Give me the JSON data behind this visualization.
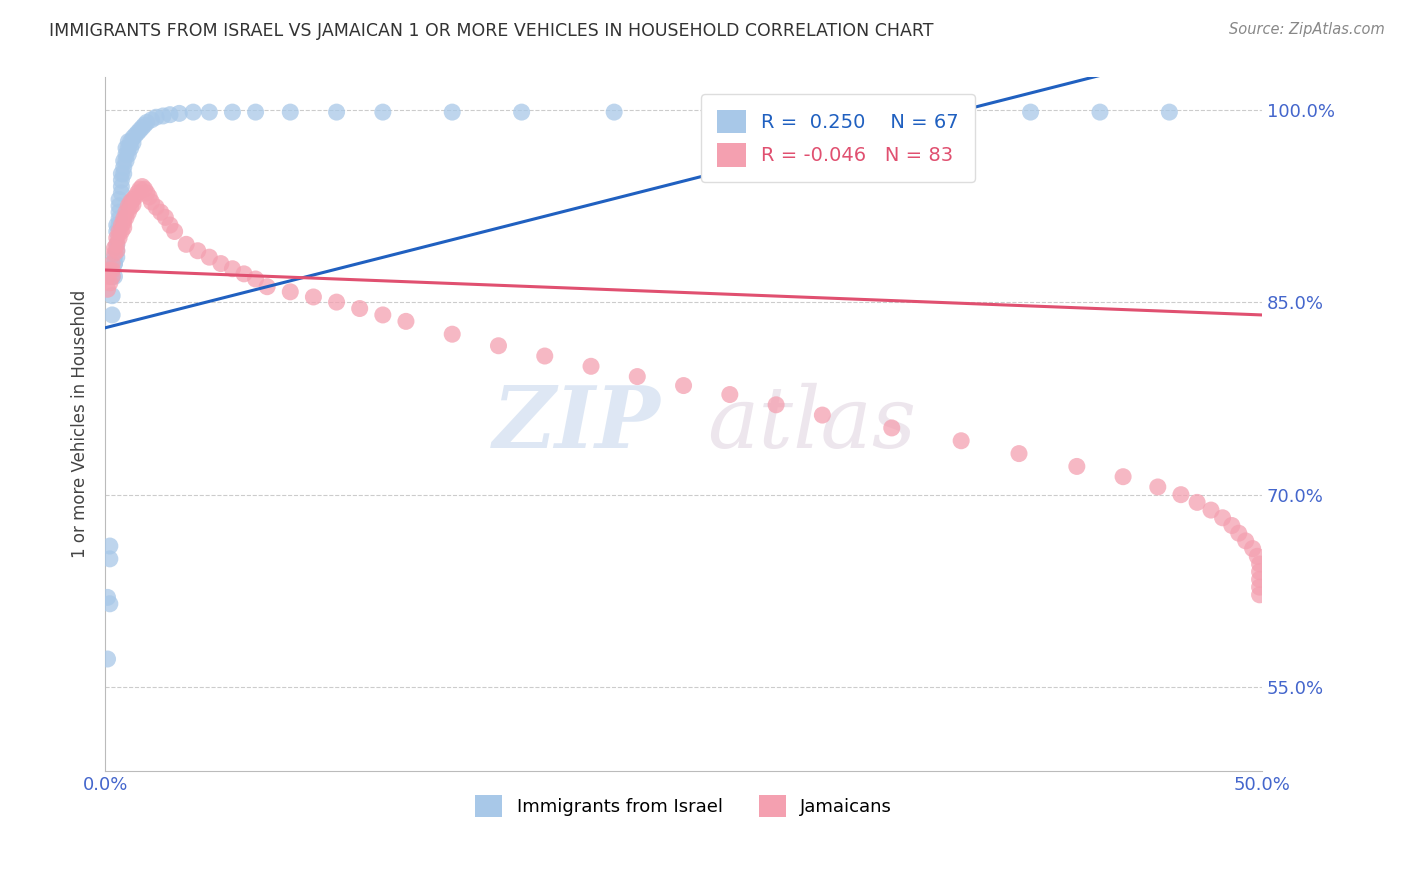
{
  "title": "IMMIGRANTS FROM ISRAEL VS JAMAICAN 1 OR MORE VEHICLES IN HOUSEHOLD CORRELATION CHART",
  "source": "Source: ZipAtlas.com",
  "ylabel": "1 or more Vehicles in Household",
  "legend_israel_r": "0.250",
  "legend_israel_n": "67",
  "legend_jamaican_r": "-0.046",
  "legend_jamaican_n": "83",
  "color_israel": "#a8c8e8",
  "color_jamaican": "#f4a0b0",
  "color_trend_israel": "#2060c0",
  "color_trend_jamaican": "#e05070",
  "xlim": [
    0.0,
    0.5
  ],
  "ylim": [
    0.485,
    1.025
  ],
  "ytick_vals": [
    1.0,
    0.85,
    0.7,
    0.55
  ],
  "ytick_labels": [
    "100.0%",
    "85.0%",
    "70.0%",
    "55.0%"
  ],
  "xtick_vals": [
    0.0,
    0.1,
    0.2,
    0.3,
    0.4,
    0.5
  ],
  "xtick_labels": [
    "0.0%",
    "",
    "",
    "",
    "",
    "50.0%"
  ],
  "israel_x": [
    0.001,
    0.001,
    0.002,
    0.002,
    0.002,
    0.003,
    0.003,
    0.003,
    0.003,
    0.004,
    0.004,
    0.004,
    0.004,
    0.005,
    0.005,
    0.005,
    0.005,
    0.005,
    0.006,
    0.006,
    0.006,
    0.006,
    0.006,
    0.007,
    0.007,
    0.007,
    0.007,
    0.008,
    0.008,
    0.008,
    0.009,
    0.009,
    0.009,
    0.01,
    0.01,
    0.01,
    0.011,
    0.011,
    0.012,
    0.012,
    0.013,
    0.014,
    0.015,
    0.016,
    0.017,
    0.018,
    0.02,
    0.022,
    0.025,
    0.028,
    0.032,
    0.038,
    0.045,
    0.055,
    0.065,
    0.08,
    0.1,
    0.12,
    0.15,
    0.18,
    0.22,
    0.27,
    0.32,
    0.37,
    0.4,
    0.43,
    0.46
  ],
  "israel_y": [
    0.572,
    0.62,
    0.65,
    0.615,
    0.66,
    0.87,
    0.87,
    0.855,
    0.84,
    0.88,
    0.885,
    0.88,
    0.87,
    0.91,
    0.905,
    0.895,
    0.89,
    0.885,
    0.93,
    0.925,
    0.92,
    0.915,
    0.91,
    0.95,
    0.945,
    0.94,
    0.935,
    0.96,
    0.955,
    0.95,
    0.97,
    0.965,
    0.96,
    0.975,
    0.97,
    0.965,
    0.975,
    0.97,
    0.978,
    0.974,
    0.98,
    0.982,
    0.984,
    0.986,
    0.988,
    0.99,
    0.992,
    0.994,
    0.995,
    0.996,
    0.997,
    0.998,
    0.998,
    0.998,
    0.998,
    0.998,
    0.998,
    0.998,
    0.998,
    0.998,
    0.998,
    0.998,
    0.998,
    0.998,
    0.998,
    0.998,
    0.998
  ],
  "jamaican_x": [
    0.001,
    0.001,
    0.002,
    0.002,
    0.003,
    0.003,
    0.003,
    0.004,
    0.004,
    0.005,
    0.005,
    0.005,
    0.006,
    0.006,
    0.007,
    0.007,
    0.008,
    0.008,
    0.008,
    0.009,
    0.009,
    0.01,
    0.01,
    0.011,
    0.011,
    0.012,
    0.012,
    0.013,
    0.014,
    0.015,
    0.016,
    0.017,
    0.018,
    0.019,
    0.02,
    0.022,
    0.024,
    0.026,
    0.028,
    0.03,
    0.035,
    0.04,
    0.045,
    0.05,
    0.055,
    0.06,
    0.065,
    0.07,
    0.08,
    0.09,
    0.1,
    0.11,
    0.12,
    0.13,
    0.15,
    0.17,
    0.19,
    0.21,
    0.23,
    0.25,
    0.27,
    0.29,
    0.31,
    0.34,
    0.37,
    0.395,
    0.42,
    0.44,
    0.455,
    0.465,
    0.472,
    0.478,
    0.483,
    0.487,
    0.49,
    0.493,
    0.496,
    0.498,
    0.499,
    0.499,
    0.499,
    0.499,
    0.499
  ],
  "jamaican_y": [
    0.86,
    0.87,
    0.875,
    0.865,
    0.88,
    0.875,
    0.87,
    0.892,
    0.888,
    0.9,
    0.895,
    0.89,
    0.905,
    0.9,
    0.91,
    0.905,
    0.915,
    0.912,
    0.908,
    0.92,
    0.916,
    0.925,
    0.92,
    0.928,
    0.924,
    0.93,
    0.926,
    0.932,
    0.935,
    0.938,
    0.94,
    0.938,
    0.935,
    0.932,
    0.928,
    0.924,
    0.92,
    0.916,
    0.91,
    0.905,
    0.895,
    0.89,
    0.885,
    0.88,
    0.876,
    0.872,
    0.868,
    0.862,
    0.858,
    0.854,
    0.85,
    0.845,
    0.84,
    0.835,
    0.825,
    0.816,
    0.808,
    0.8,
    0.792,
    0.785,
    0.778,
    0.77,
    0.762,
    0.752,
    0.742,
    0.732,
    0.722,
    0.714,
    0.706,
    0.7,
    0.694,
    0.688,
    0.682,
    0.676,
    0.67,
    0.664,
    0.658,
    0.652,
    0.646,
    0.64,
    0.634,
    0.628,
    0.622
  ],
  "watermark_zip": "ZIP",
  "watermark_atlas": "atlas",
  "background_color": "#ffffff",
  "grid_color": "#cccccc",
  "title_color": "#333333",
  "tick_label_color": "#4466cc"
}
